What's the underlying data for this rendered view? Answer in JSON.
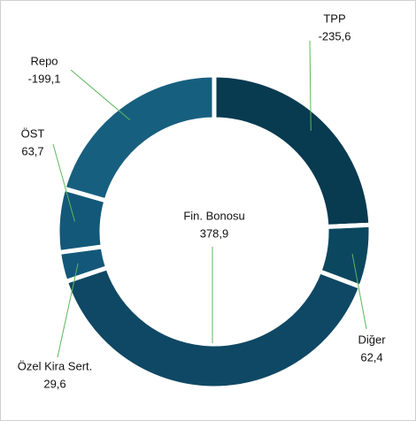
{
  "chart_data": {
    "type": "donut",
    "categories": [
      "TPP",
      "Diğer",
      "Fin. Bonosu",
      "Özel Kira Sert.",
      "ÖST",
      "Repo"
    ],
    "values": [
      -235.6,
      62.4,
      378.9,
      29.6,
      63.7,
      -199.1
    ],
    "value_labels": [
      "-235,6",
      "62,4",
      "378,9",
      "29,6",
      "63,7",
      "-199,1"
    ],
    "colors": [
      "#083a50",
      "#0c4760",
      "#0f4864",
      "#13587a",
      "#135878",
      "#175f7f"
    ]
  }
}
